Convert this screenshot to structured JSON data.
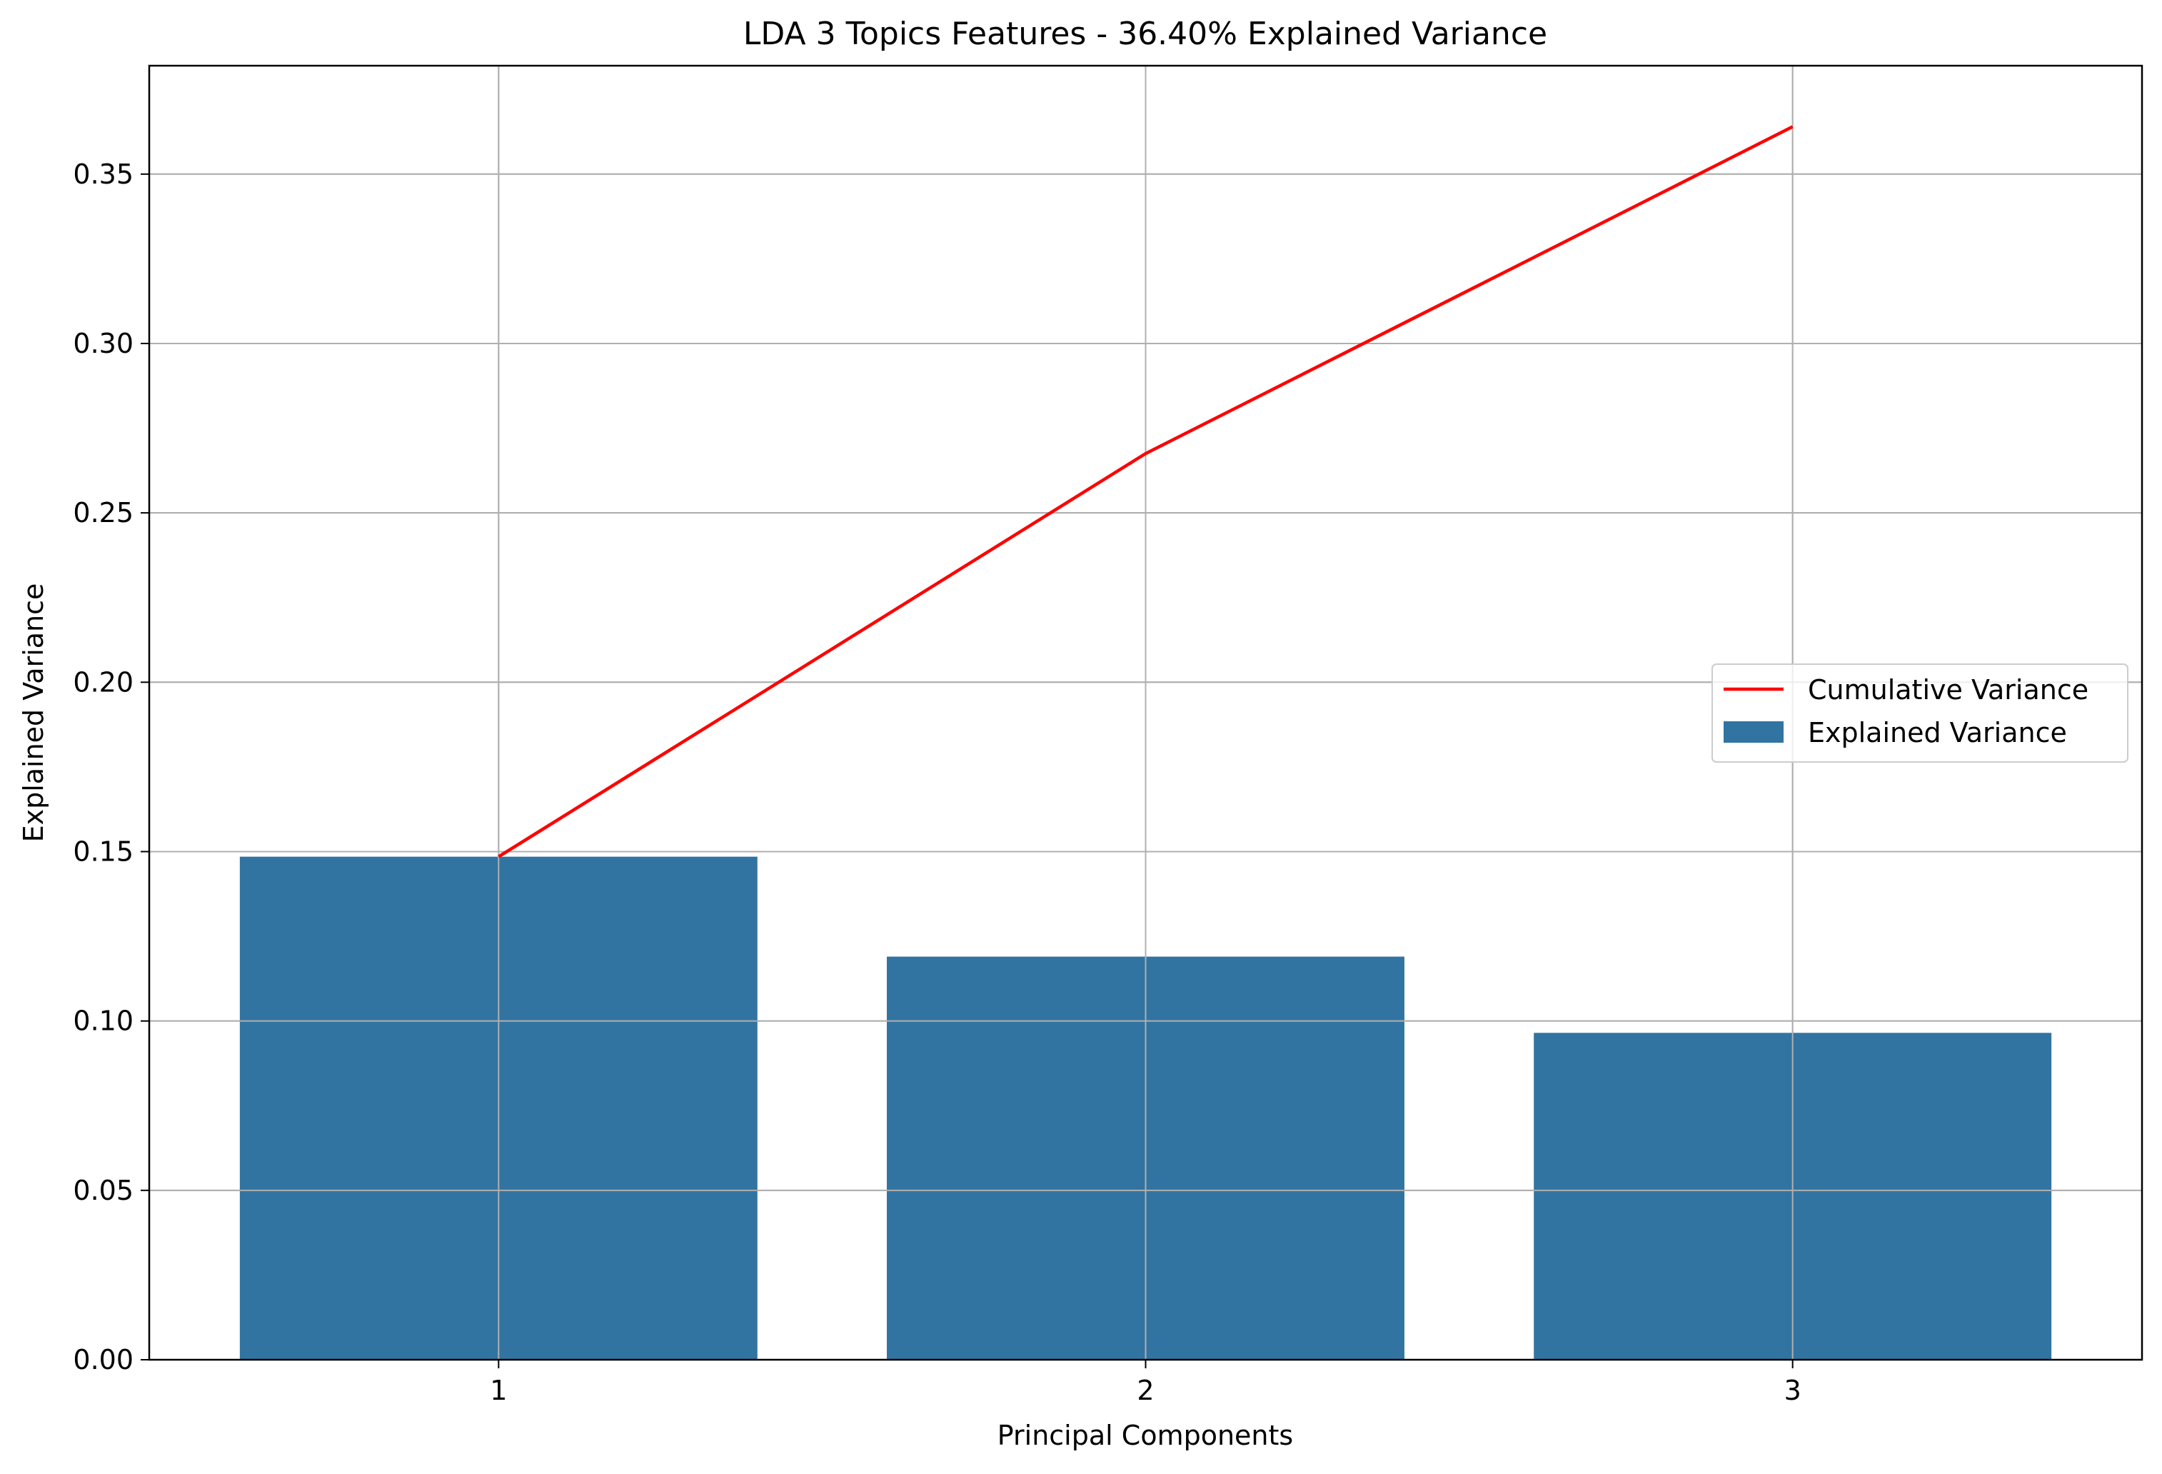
{
  "chart_data": {
    "type": "bar",
    "title": "LDA 3 Topics Features - 36.40% Explained Variance",
    "xlabel": "Principal Components",
    "ylabel": "Explained Variance",
    "categories": [
      "1",
      "2",
      "3"
    ],
    "x": [
      1,
      2,
      3
    ],
    "xlim": [
      0.46,
      3.54
    ],
    "ylim": [
      0,
      0.382
    ],
    "yticks": [
      0.0,
      0.05,
      0.1,
      0.15,
      0.2,
      0.25,
      0.3,
      0.35
    ],
    "ytick_labels": [
      "0.00",
      "0.05",
      "0.10",
      "0.15",
      "0.20",
      "0.25",
      "0.30",
      "0.35"
    ],
    "grid": true,
    "legend_position": "center-right",
    "series": [
      {
        "name": "Explained Variance",
        "kind": "bar",
        "color": "#3274a1",
        "values": [
          0.1485,
          0.119,
          0.0965
        ]
      },
      {
        "name": "Cumulative Variance",
        "kind": "line",
        "color": "#ff0000",
        "values": [
          0.1485,
          0.2675,
          0.364
        ]
      }
    ],
    "legend": [
      {
        "label": "Cumulative Variance",
        "kind": "line",
        "color": "#ff0000"
      },
      {
        "label": "Explained Variance",
        "kind": "bar",
        "color": "#3274a1"
      }
    ]
  }
}
